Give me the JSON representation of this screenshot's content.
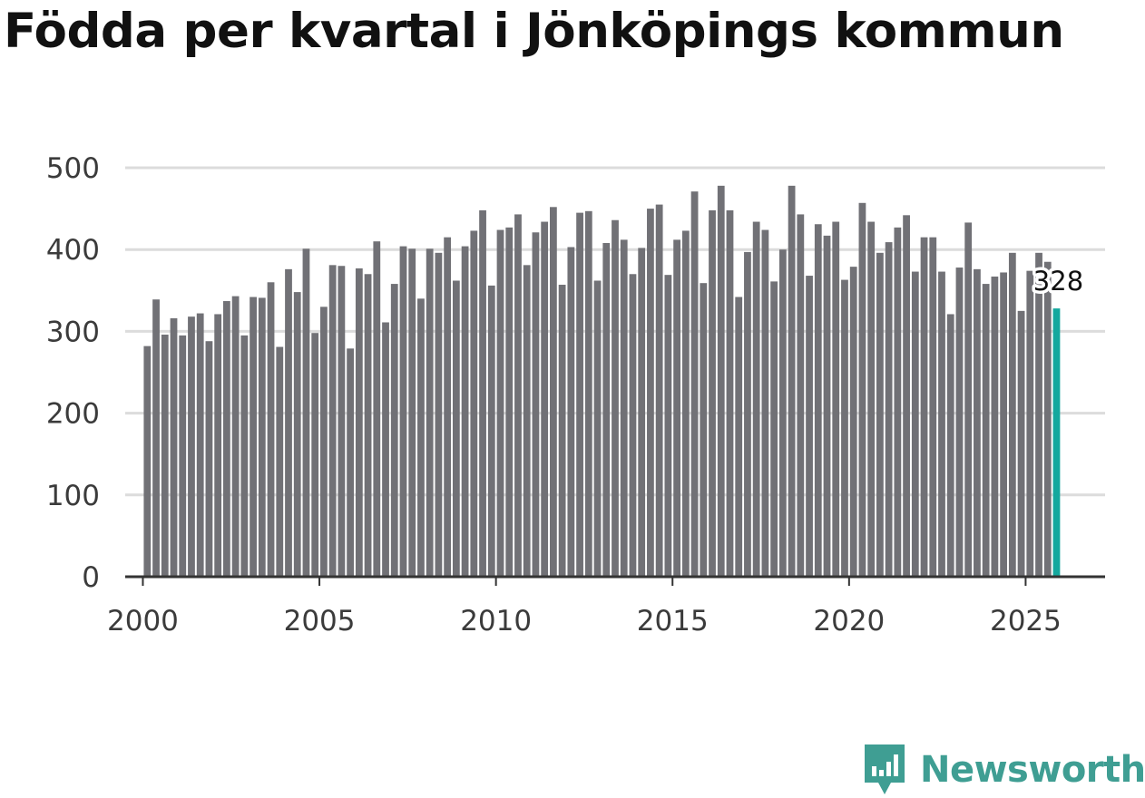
{
  "title": "Födda per kvartal i Jönköpings kommun",
  "brand": {
    "name": "Newsworthy"
  },
  "colors": {
    "bar": "#717176",
    "highlight": "#14a89e",
    "grid": "#dcdcdc",
    "axis": "#333333",
    "brand": "#3f9e93"
  },
  "chart_data": {
    "type": "bar",
    "title": "Födda per kvartal i Jönköpings kommun",
    "xlabel": "",
    "ylabel": "",
    "ylim": [
      0,
      500
    ],
    "yticks": [
      0,
      100,
      200,
      300,
      400,
      500
    ],
    "xlim": [
      1999.5,
      2027.25
    ],
    "xticks": [
      2000,
      2005,
      2010,
      2015,
      2020,
      2025
    ],
    "start_year": 2000,
    "highlight_label": "328",
    "values": [
      282,
      339,
      296,
      316,
      295,
      318,
      322,
      288,
      321,
      337,
      343,
      295,
      342,
      341,
      360,
      281,
      376,
      348,
      401,
      298,
      330,
      381,
      380,
      279,
      377,
      370,
      410,
      311,
      358,
      404,
      401,
      340,
      401,
      396,
      415,
      362,
      404,
      423,
      448,
      356,
      424,
      427,
      443,
      381,
      421,
      434,
      452,
      357,
      403,
      445,
      447,
      362,
      408,
      436,
      412,
      370,
      402,
      450,
      455,
      369,
      412,
      423,
      471,
      359,
      448,
      478,
      448,
      342,
      397,
      434,
      424,
      361,
      400,
      478,
      443,
      368,
      431,
      417,
      434,
      363,
      379,
      457,
      434,
      396,
      409,
      427,
      442,
      373,
      415,
      415,
      373,
      321,
      378,
      433,
      376,
      358,
      367,
      372,
      396,
      325,
      374,
      396,
      385,
      328
    ]
  }
}
